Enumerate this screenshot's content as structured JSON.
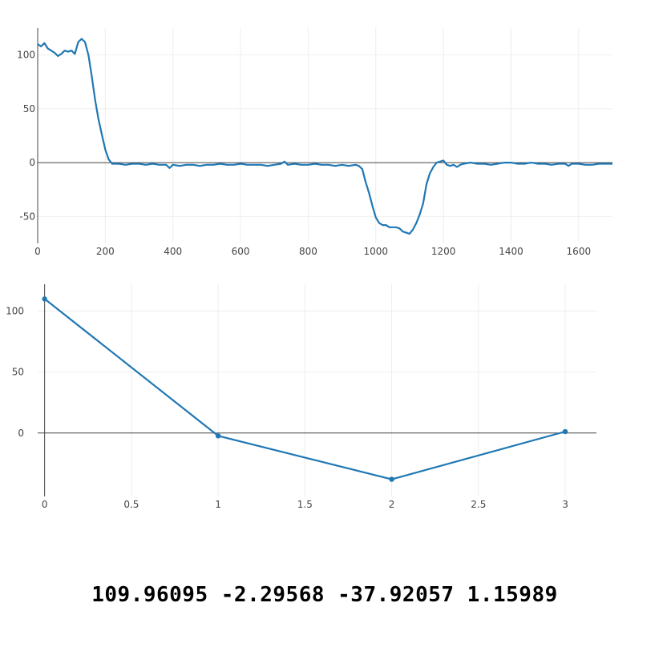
{
  "chart_data": [
    {
      "type": "line",
      "xlim": [
        0,
        1700
      ],
      "ylim": [
        -75,
        125
      ],
      "x_ticks": [
        0,
        200,
        400,
        600,
        800,
        1000,
        1200,
        1400,
        1600
      ],
      "y_ticks": [
        -50,
        0,
        50,
        100
      ],
      "grid": true,
      "series": [
        {
          "color": "#1f77b4",
          "points": [
            [
              0,
              110
            ],
            [
              10,
              108
            ],
            [
              20,
              111
            ],
            [
              30,
              106
            ],
            [
              40,
              104
            ],
            [
              50,
              102
            ],
            [
              60,
              99
            ],
            [
              70,
              101
            ],
            [
              80,
              104
            ],
            [
              90,
              103
            ],
            [
              100,
              104
            ],
            [
              110,
              101
            ],
            [
              120,
              112
            ],
            [
              130,
              115
            ],
            [
              140,
              112
            ],
            [
              150,
              100
            ],
            [
              160,
              80
            ],
            [
              170,
              58
            ],
            [
              180,
              40
            ],
            [
              190,
              26
            ],
            [
              200,
              12
            ],
            [
              210,
              3
            ],
            [
              220,
              -1
            ],
            [
              240,
              -1
            ],
            [
              260,
              -2
            ],
            [
              280,
              -1
            ],
            [
              300,
              -1
            ],
            [
              320,
              -2
            ],
            [
              340,
              -1
            ],
            [
              360,
              -2
            ],
            [
              380,
              -2
            ],
            [
              390,
              -5
            ],
            [
              400,
              -2
            ],
            [
              420,
              -3
            ],
            [
              440,
              -2
            ],
            [
              460,
              -2
            ],
            [
              480,
              -3
            ],
            [
              500,
              -2
            ],
            [
              520,
              -2
            ],
            [
              540,
              -1
            ],
            [
              560,
              -2
            ],
            [
              580,
              -2
            ],
            [
              600,
              -1
            ],
            [
              620,
              -2
            ],
            [
              640,
              -2
            ],
            [
              660,
              -2
            ],
            [
              680,
              -3
            ],
            [
              700,
              -2
            ],
            [
              720,
              -1
            ],
            [
              730,
              1
            ],
            [
              740,
              -2
            ],
            [
              760,
              -1
            ],
            [
              780,
              -2
            ],
            [
              800,
              -2
            ],
            [
              820,
              -1
            ],
            [
              840,
              -2
            ],
            [
              860,
              -2
            ],
            [
              880,
              -3
            ],
            [
              900,
              -2
            ],
            [
              920,
              -3
            ],
            [
              940,
              -2
            ],
            [
              950,
              -3
            ],
            [
              960,
              -6
            ],
            [
              970,
              -18
            ],
            [
              980,
              -28
            ],
            [
              990,
              -40
            ],
            [
              1000,
              -51
            ],
            [
              1010,
              -56
            ],
            [
              1020,
              -58
            ],
            [
              1030,
              -58
            ],
            [
              1040,
              -60
            ],
            [
              1060,
              -60
            ],
            [
              1070,
              -61
            ],
            [
              1080,
              -64
            ],
            [
              1090,
              -65
            ],
            [
              1100,
              -66
            ],
            [
              1110,
              -62
            ],
            [
              1120,
              -56
            ],
            [
              1130,
              -48
            ],
            [
              1140,
              -38
            ],
            [
              1150,
              -20
            ],
            [
              1160,
              -10
            ],
            [
              1170,
              -4
            ],
            [
              1180,
              0
            ],
            [
              1190,
              1
            ],
            [
              1200,
              2
            ],
            [
              1210,
              -2
            ],
            [
              1220,
              -3
            ],
            [
              1230,
              -2
            ],
            [
              1240,
              -4
            ],
            [
              1250,
              -2
            ],
            [
              1260,
              -1
            ],
            [
              1280,
              0
            ],
            [
              1300,
              -1
            ],
            [
              1320,
              -1
            ],
            [
              1340,
              -2
            ],
            [
              1360,
              -1
            ],
            [
              1380,
              0
            ],
            [
              1400,
              0
            ],
            [
              1420,
              -1
            ],
            [
              1440,
              -1
            ],
            [
              1460,
              0
            ],
            [
              1480,
              -1
            ],
            [
              1500,
              -1
            ],
            [
              1520,
              -2
            ],
            [
              1540,
              -1
            ],
            [
              1560,
              -1
            ],
            [
              1570,
              -3
            ],
            [
              1580,
              -1
            ],
            [
              1600,
              -1
            ],
            [
              1620,
              -2
            ],
            [
              1640,
              -2
            ],
            [
              1660,
              -1
            ],
            [
              1680,
              -1
            ],
            [
              1700,
              -1
            ]
          ]
        }
      ]
    },
    {
      "type": "line",
      "xlim": [
        -0.04,
        3.18
      ],
      "ylim": [
        -52,
        122
      ],
      "x_ticks": [
        0,
        0.5,
        1,
        1.5,
        2,
        2.5,
        3
      ],
      "y_ticks": [
        0,
        50,
        100
      ],
      "grid": true,
      "series": [
        {
          "color": "#1f77b4",
          "markers": true,
          "points": [
            [
              0,
              109.96095
            ],
            [
              1,
              -2.29568
            ],
            [
              2,
              -37.92057
            ],
            [
              3,
              1.15989
            ]
          ]
        }
      ]
    }
  ],
  "readout": "109.96095 -2.29568 -37.92057 1.15989"
}
